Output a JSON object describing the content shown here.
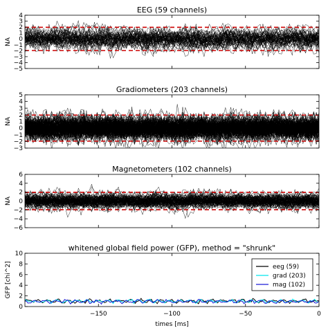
{
  "chart_data": [
    {
      "type": "line",
      "title": "EEG (59 channels)",
      "ylabel": "NA",
      "xlim": [
        -200,
        0
      ],
      "ylim": [
        -5,
        4
      ],
      "yticks": [
        -5,
        -4,
        -3,
        -2,
        -1,
        0,
        1,
        2,
        3,
        4
      ],
      "threshold_lines": [
        -1.96,
        1.96
      ],
      "threshold_color": "#cc0000",
      "series_count": 59,
      "signal_spread": 1.0,
      "seed": 11,
      "trace_color": "#000000"
    },
    {
      "type": "line",
      "title": "Gradiometers (203 channels)",
      "ylabel": "NA",
      "xlim": [
        -200,
        0
      ],
      "ylim": [
        -3,
        5
      ],
      "yticks": [
        -3,
        -2,
        -1,
        0,
        1,
        2,
        3,
        4,
        5
      ],
      "threshold_lines": [
        -1.96,
        1.96
      ],
      "threshold_color": "#cc0000",
      "series_count": 203,
      "signal_spread": 1.0,
      "seed": 23,
      "trace_color": "#000000"
    },
    {
      "type": "line",
      "title": "Magnetometers (102 channels)",
      "ylabel": "NA",
      "xlim": [
        -200,
        0
      ],
      "ylim": [
        -6,
        6
      ],
      "yticks": [
        -6,
        -4,
        -2,
        0,
        2,
        4,
        6
      ],
      "threshold_lines": [
        -1.96,
        1.96
      ],
      "threshold_color": "#cc0000",
      "series_count": 102,
      "signal_spread": 1.0,
      "seed": 37,
      "trace_color": "#000000"
    },
    {
      "type": "line",
      "title": "whitened global field power (GFP), method = \"shrunk\"",
      "ylabel": "GFP [chi^2]",
      "xlabel": "times [ms]",
      "xlim": [
        -200,
        0
      ],
      "ylim": [
        0,
        10
      ],
      "yticks": [
        0,
        2,
        4,
        6,
        8,
        10
      ],
      "xticks": [
        -150,
        -100,
        -50,
        0
      ],
      "legend_position": "upper-right",
      "series": [
        {
          "name": "eeg (59)",
          "color": "#000000",
          "mean": 1.05,
          "seed": 5
        },
        {
          "name": "grad (203)",
          "color": "#00e5ee",
          "mean": 1.0,
          "seed": 9
        },
        {
          "name": "mag (102)",
          "color": "#1c1cd6",
          "mean": 0.95,
          "seed": 13
        }
      ]
    }
  ]
}
